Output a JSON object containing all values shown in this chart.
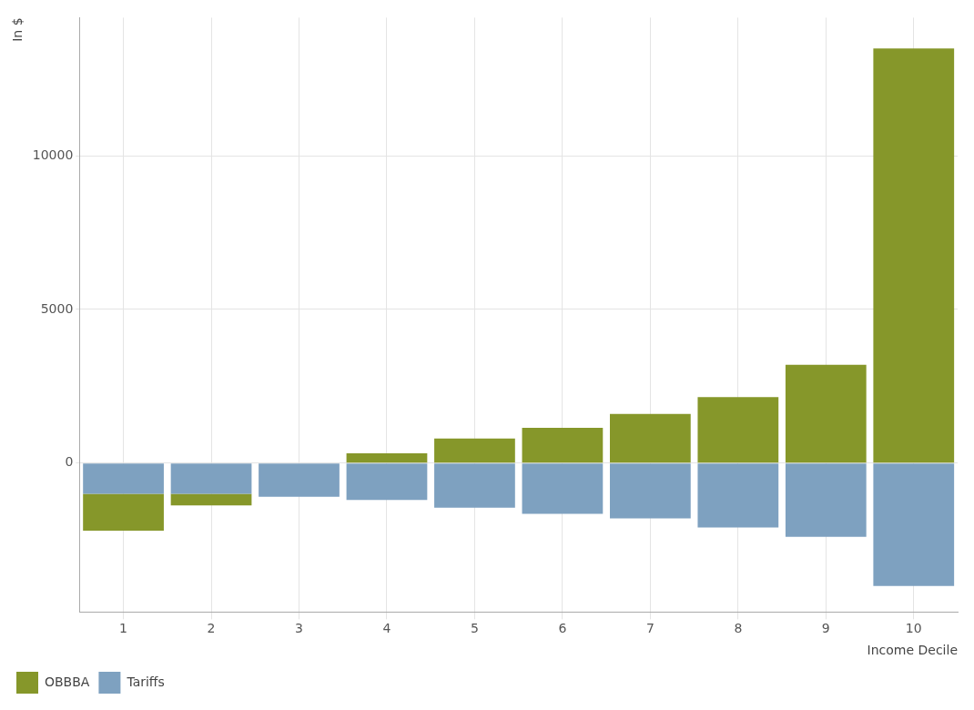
{
  "chart_data": {
    "type": "bar",
    "stacked": true,
    "xlabel": "Income Decile",
    "ylabel": "In $",
    "categories": [
      "1",
      "2",
      "3",
      "4",
      "5",
      "6",
      "7",
      "8",
      "9",
      "10"
    ],
    "series": [
      {
        "name": "Tariffs",
        "color": "#7ea1c0",
        "values": [
          -1000,
          -1000,
          -1100,
          -1200,
          -1450,
          -1650,
          -1800,
          -2100,
          -2400,
          -4000
        ]
      },
      {
        "name": "OBBBA",
        "color": "#86972a",
        "values": [
          -1200,
          -380,
          0,
          320,
          800,
          1150,
          1600,
          2150,
          3200,
          13500
        ]
      }
    ],
    "ylim": [
      -4850,
      14500
    ],
    "yticks": [
      0,
      5000,
      10000
    ],
    "grid": true,
    "legend": "bottom left"
  }
}
